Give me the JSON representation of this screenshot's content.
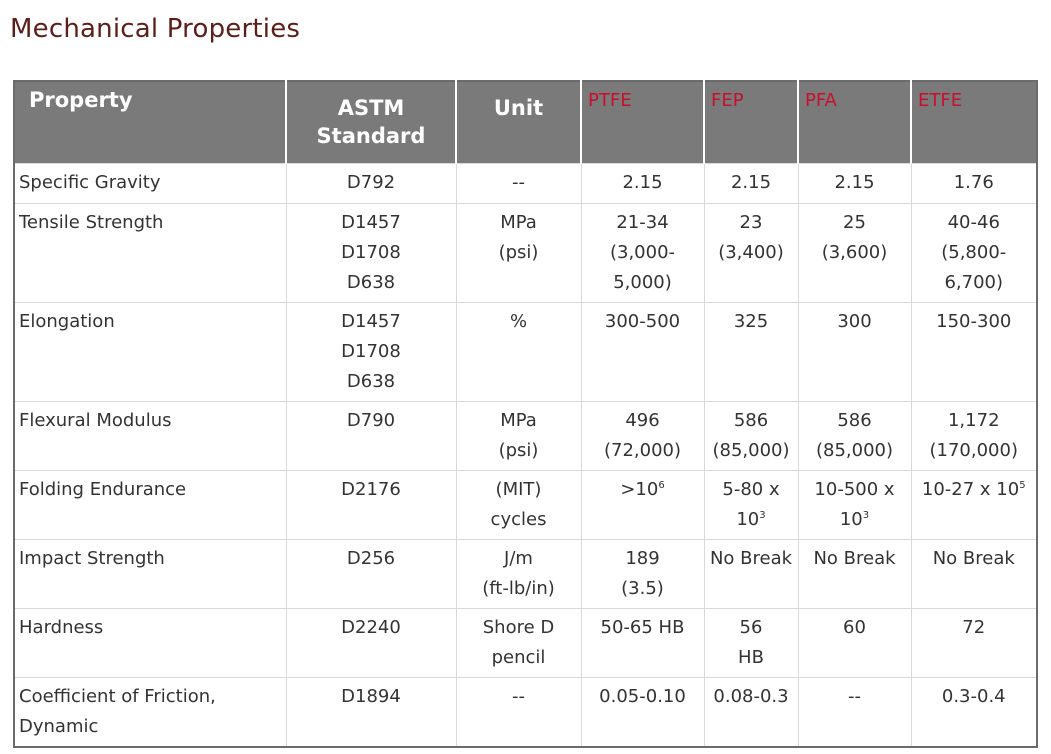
{
  "title": "Mechanical Properties",
  "header": {
    "property": "Property",
    "astm_line1": "ASTM",
    "astm_line2": "Standard",
    "unit": "Unit",
    "ptfe": "PTFE",
    "fep": "FEP",
    "pfa": "PFA",
    "etfe": "ETFE"
  },
  "colors": {
    "title": "#5a1f1a",
    "header_bg": "#7a7a7a",
    "material_header": "#c8102e"
  },
  "rows": {
    "specific_gravity": {
      "property": "Specific Gravity",
      "astm": "D792",
      "unit": "--",
      "ptfe": "2.15",
      "fep": "2.15",
      "pfa": "2.15",
      "etfe": "1.76"
    },
    "tensile_strength": {
      "property": "Tensile Strength",
      "astm": [
        "D1457",
        "D1708",
        "D638"
      ],
      "unit": [
        "MPa",
        "(psi)"
      ],
      "ptfe": [
        "21-34",
        "(3,000-",
        "5,000)"
      ],
      "fep": [
        "23",
        "(3,400)"
      ],
      "pfa": [
        "25",
        "(3,600)"
      ],
      "etfe": [
        "40-46",
        "(5,800-",
        "6,700)"
      ]
    },
    "elongation": {
      "property": "Elongation",
      "astm": [
        "D1457",
        "D1708",
        "D638"
      ],
      "unit": "%",
      "ptfe": "300-500",
      "fep": "325",
      "pfa": "300",
      "etfe": "150-300"
    },
    "flexural_modulus": {
      "property": "Flexural Modulus",
      "astm": "D790",
      "unit": [
        "MPa",
        "(psi)"
      ],
      "ptfe": [
        "496",
        "(72,000)"
      ],
      "fep": [
        "586",
        "(85,000)"
      ],
      "pfa": [
        "586",
        "(85,000)"
      ],
      "etfe": [
        "1,172",
        "(170,000)"
      ]
    },
    "folding_endurance": {
      "property": "Folding Endurance",
      "astm": "D2176",
      "unit": [
        "(MIT)",
        "cycles"
      ],
      "ptfe": {
        "base": ">10",
        "exp": "6"
      },
      "fep": {
        "line1": "5-80 x",
        "base": "10",
        "exp": "3"
      },
      "pfa": {
        "line1": "10-500 x",
        "base": "10",
        "exp": "3"
      },
      "etfe": {
        "base": "10-27 x 10",
        "exp": "5"
      }
    },
    "impact_strength": {
      "property": "Impact Strength",
      "astm": "D256",
      "unit": [
        "J/m",
        "(ft-lb/in)"
      ],
      "ptfe": [
        "189",
        "(3.5)"
      ],
      "fep": "No Break",
      "pfa": "No Break",
      "etfe": "No Break"
    },
    "hardness": {
      "property": "Hardness",
      "astm": "D2240",
      "unit": [
        "Shore D",
        "pencil"
      ],
      "ptfe": "50-65 HB",
      "fep": [
        "56",
        "HB"
      ],
      "pfa": "60",
      "etfe": "72"
    },
    "coefficient_of_friction": {
      "property_line1": "Coefficient of Friction,",
      "property_line2": "Dynamic",
      "astm": "D1894",
      "unit": "--",
      "ptfe": "0.05-0.10",
      "fep": "0.08-0.3",
      "pfa": "--",
      "etfe": "0.3-0.4"
    }
  }
}
